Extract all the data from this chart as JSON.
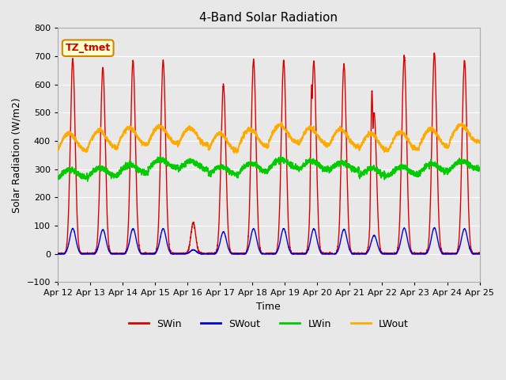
{
  "title": "4-Band Solar Radiation",
  "xlabel": "Time",
  "ylabel": "Solar Radiation (W/m2)",
  "ylim": [
    -100,
    800
  ],
  "yticks": [
    -100,
    0,
    100,
    200,
    300,
    400,
    500,
    600,
    700,
    800
  ],
  "num_days": 14,
  "legend_labels": [
    "SWin",
    "SWout",
    "LWin",
    "LWout"
  ],
  "legend_colors": [
    "#dd0000",
    "#0000dd",
    "#00cc00",
    "#ffaa00"
  ],
  "annotation_text": "TZ_tmet",
  "annotation_bg": "#ffffcc",
  "annotation_border": "#cc8800",
  "colors": {
    "SWin": "#dd0000",
    "SWout": "#0000dd",
    "LWin": "#00cc00",
    "LWout": "#ffaa00"
  },
  "background_color": "#e8e8e8",
  "plot_bg": "#e8e8e8",
  "grid_color": "#ffffff",
  "x_tick_labels": [
    "Apr 12",
    "Apr 13",
    "Apr 14",
    "Apr 15",
    "Apr 16",
    "Apr 17",
    "Apr 18",
    "Apr 19",
    "Apr 20",
    "Apr 21",
    "Apr 22",
    "Apr 23",
    "Apr 24",
    "Apr 25"
  ],
  "x_tick_positions": [
    0,
    1,
    2,
    3,
    4,
    5,
    6,
    7,
    8,
    9,
    10,
    11,
    12,
    13
  ],
  "swin_peaks": [
    690,
    660,
    685,
    685,
    110,
    600,
    685,
    685,
    680,
    670,
    500,
    700,
    710,
    685
  ],
  "swin_secondary": [
    0,
    0,
    0,
    125,
    0,
    0,
    0,
    0,
    600,
    0,
    580,
    0,
    0,
    0
  ],
  "lwin_base": [
    255,
    260,
    270,
    290,
    285,
    265,
    275,
    290,
    285,
    280,
    260,
    265,
    275,
    285
  ],
  "lwout_base": [
    345,
    355,
    365,
    370,
    365,
    345,
    360,
    375,
    365,
    360,
    345,
    350,
    360,
    375
  ]
}
